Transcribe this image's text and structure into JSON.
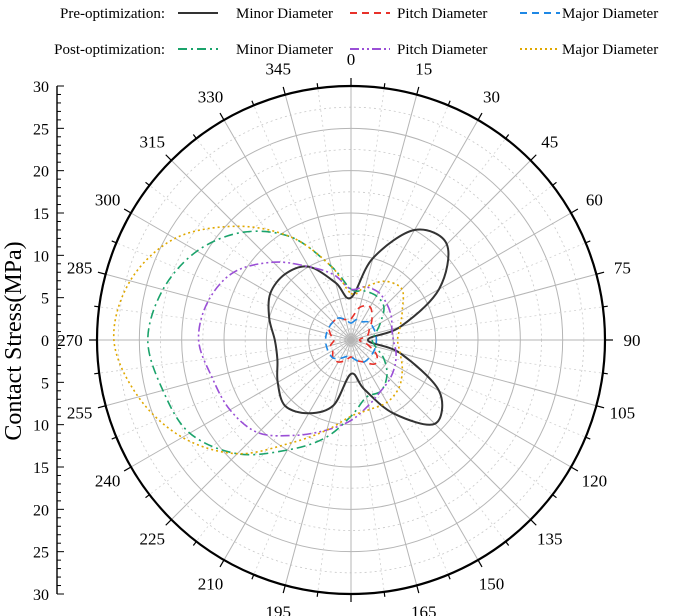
{
  "chart_data": {
    "type": "polar-line",
    "ylabel": "Contact Stress(MPa)",
    "radial_range": [
      0,
      30
    ],
    "radial_ticks": [
      "0",
      "5",
      "10",
      "15",
      "20",
      "25",
      "30"
    ],
    "angle_ticks": [
      "0",
      "15",
      "30",
      "45",
      "60",
      "75",
      "90",
      "105",
      "120",
      "135",
      "150",
      "165",
      "180",
      "195",
      "210",
      "225",
      "240",
      "255",
      "270",
      "285",
      "300",
      "315",
      "330",
      "345"
    ],
    "angle_direction": "clockwise",
    "angle_zero": "top",
    "grid": true,
    "legend_position": "top",
    "legend_groups": [
      {
        "label": "Pre-optimization:",
        "series_indices": [
          0,
          1,
          2
        ]
      },
      {
        "label": "Post-optimization:",
        "series_indices": [
          3,
          4,
          5
        ]
      }
    ],
    "theta": [
      0,
      15,
      30,
      45,
      60,
      75,
      90,
      105,
      120,
      135,
      150,
      165,
      180,
      195,
      210,
      225,
      240,
      255,
      270,
      285,
      300,
      315,
      330,
      345
    ],
    "series": [
      {
        "name": "Minor Diameter",
        "color": "#333333",
        "dash": "solid",
        "values": [
          5,
          10,
          15,
          16,
          12,
          6,
          2,
          6,
          12,
          14,
          10,
          6,
          4,
          8,
          10,
          11,
          10,
          9,
          9,
          10,
          11,
          11,
          10,
          7
        ]
      },
      {
        "name": "Pitch Diameter",
        "color": "#e8312a",
        "dash": "dashed",
        "values": [
          2.5,
          4,
          4.5,
          3.5,
          2.5,
          2,
          1,
          2,
          3.5,
          4,
          3,
          2.5,
          2,
          2.5,
          3,
          3,
          2.5,
          2.5,
          2,
          2.5,
          3,
          3,
          3,
          2.5
        ]
      },
      {
        "name": "Major Diameter",
        "color": "#1e88e5",
        "dash": "dashed",
        "values": [
          2,
          2.5,
          2.5,
          3,
          3,
          3,
          3,
          3,
          3,
          3,
          3,
          2.5,
          2,
          2,
          2.5,
          3,
          3,
          3,
          3,
          3,
          3,
          3,
          3,
          2.5
        ]
      },
      {
        "name": "Minor Diameter",
        "color": "#1aa36b",
        "dash": "dashdot",
        "values": [
          6,
          6,
          6,
          5.5,
          4,
          3,
          2.5,
          3,
          4.5,
          6,
          7,
          7,
          9,
          12,
          15,
          19,
          22,
          23,
          24,
          23,
          21,
          18,
          14,
          9
        ]
      },
      {
        "name": "Pitch Diameter",
        "color": "#9a4fd6",
        "dash": "dashdotdot",
        "values": [
          6,
          6.5,
          6.5,
          6,
          5.5,
          5,
          5,
          5.5,
          6,
          6.5,
          7,
          8,
          9.5,
          11,
          13,
          15.5,
          16.5,
          17,
          18,
          17.5,
          16,
          13,
          10,
          8
        ]
      },
      {
        "name": "Major Diameter",
        "color": "#e0a800",
        "dash": "dotted",
        "values": [
          5.5,
          6.5,
          8,
          8.5,
          7,
          6,
          5.5,
          6,
          7,
          8,
          8.5,
          8.5,
          9,
          11,
          14,
          19,
          23,
          26,
          28,
          27,
          24,
          19,
          14,
          9
        ]
      }
    ]
  }
}
